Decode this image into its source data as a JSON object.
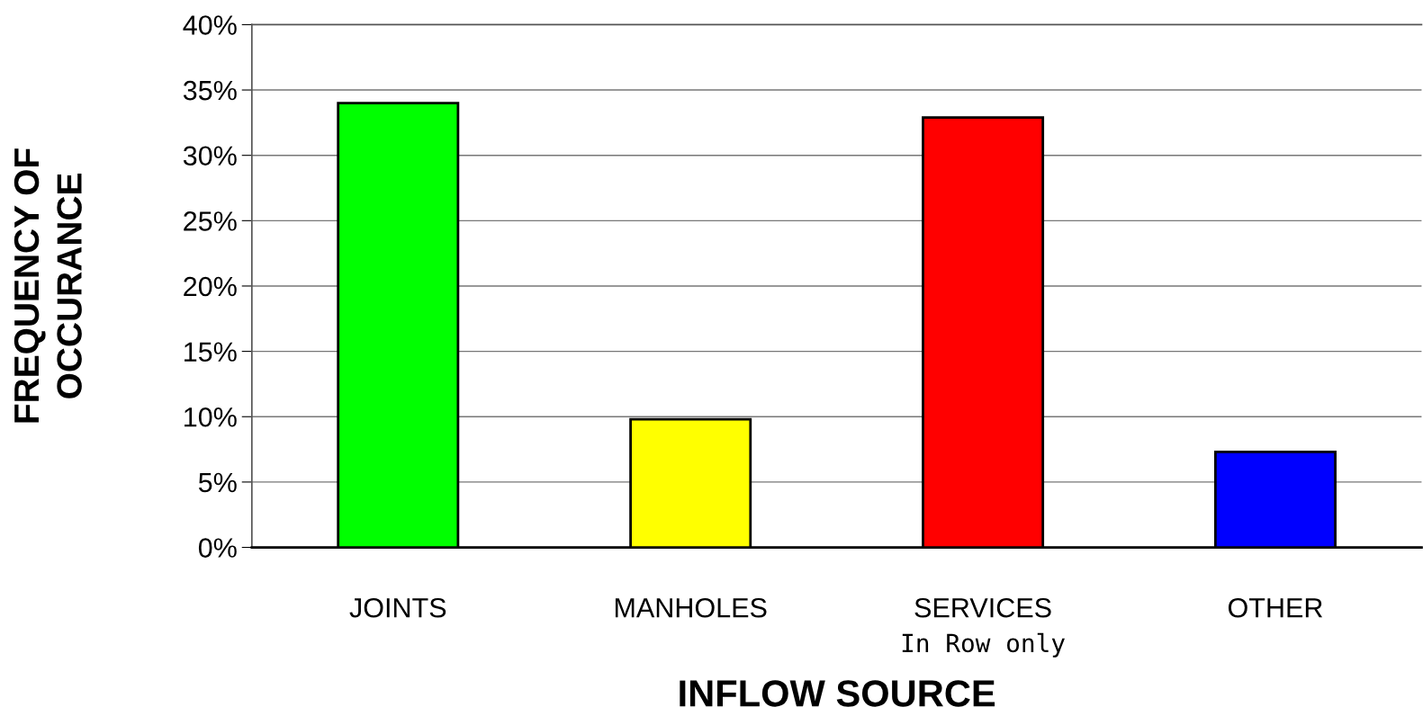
{
  "chart_data": {
    "type": "bar",
    "xlabel": "INFLOW SOURCE",
    "ylabel": "FREQUENCY OF\nOCCURANCE",
    "categories": [
      "JOINTS",
      "MANHOLES",
      "SERVICES",
      "OTHER"
    ],
    "values": [
      34.0,
      9.8,
      32.9,
      7.3
    ],
    "colors": [
      "#00ff00",
      "#ffff00",
      "#ff0000",
      "#0000ff"
    ],
    "ylim": [
      0,
      40
    ],
    "yticks": [
      {
        "value": 0,
        "label": "0%"
      },
      {
        "value": 5,
        "label": "5%"
      },
      {
        "value": 10,
        "label": "10%"
      },
      {
        "value": 15,
        "label": "15%"
      },
      {
        "value": 20,
        "label": "20%"
      },
      {
        "value": 25,
        "label": "25%"
      },
      {
        "value": 30,
        "label": "30%"
      },
      {
        "value": 35,
        "label": "35%"
      },
      {
        "value": 40,
        "label": "40%"
      }
    ],
    "grid": "y",
    "legend": false,
    "annotations": [
      "In Row only"
    ]
  }
}
